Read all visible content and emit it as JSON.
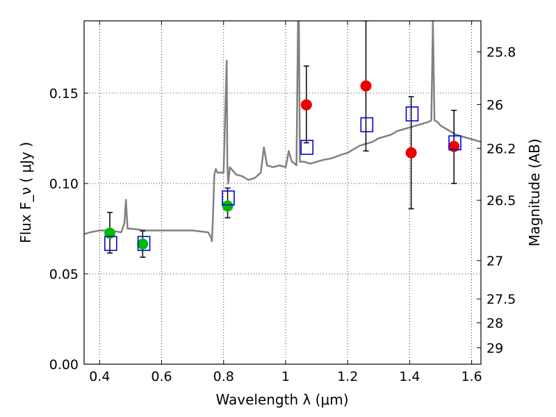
{
  "chart_data": {
    "type": "scatter",
    "xlabel": "Wavelength  λ (μm)",
    "ylabel": "Flux  F_ν  ( μJy )",
    "y2label": "Magnitude (AB)",
    "xlim": [
      0.35,
      1.63
    ],
    "ylim": [
      0.0,
      0.19
    ],
    "grid": true,
    "x_ticks": [
      "0.4",
      "0.6",
      "0.8",
      "1",
      "1.2",
      "1.4",
      "1.6"
    ],
    "y_ticks": [
      "0.00",
      "0.05",
      "0.10",
      "0.15"
    ],
    "y2_ticks": [
      {
        "label": "25.8",
        "flux": 0.1728
      },
      {
        "label": "26",
        "flux": 0.1437
      },
      {
        "label": "26.2",
        "flux": 0.1195
      },
      {
        "label": "26.5",
        "flux": 0.0907
      },
      {
        "label": "27",
        "flux": 0.0573
      },
      {
        "label": "27.5",
        "flux": 0.0361
      },
      {
        "label": "28",
        "flux": 0.0229
      },
      {
        "label": "29",
        "flux": 0.0091
      }
    ],
    "series": [
      {
        "type": "line",
        "color": "#808080",
        "x": [
          0.35,
          0.37,
          0.4,
          0.43,
          0.47,
          0.48,
          0.485,
          0.49,
          0.5,
          0.55,
          0.6,
          0.65,
          0.7,
          0.75,
          0.76,
          0.762,
          0.765,
          0.77,
          0.775,
          0.78,
          0.8,
          0.81,
          0.812,
          0.815,
          0.82,
          0.84,
          0.86,
          0.88,
          0.9,
          0.92,
          0.93,
          0.94,
          0.96,
          0.98,
          1.0,
          1.005,
          1.01,
          1.02,
          1.03,
          1.035,
          1.04,
          1.043,
          1.046,
          1.05,
          1.06,
          1.08,
          1.1,
          1.12,
          1.15,
          1.18,
          1.2,
          1.22,
          1.24,
          1.26,
          1.28,
          1.3,
          1.32,
          1.34,
          1.36,
          1.38,
          1.4,
          1.42,
          1.44,
          1.46,
          1.47,
          1.475,
          1.48,
          1.49,
          1.5,
          1.52,
          1.55,
          1.57,
          1.59,
          1.61,
          1.63
        ],
        "y": [
          0.072,
          0.073,
          0.074,
          0.074,
          0.073,
          0.078,
          0.091,
          0.075,
          0.075,
          0.074,
          0.074,
          0.074,
          0.074,
          0.073,
          0.07,
          0.068,
          0.078,
          0.105,
          0.108,
          0.106,
          0.106,
          0.168,
          0.11,
          0.1,
          0.109,
          0.105,
          0.104,
          0.102,
          0.103,
          0.106,
          0.12,
          0.11,
          0.109,
          0.11,
          0.109,
          0.113,
          0.118,
          0.112,
          0.111,
          0.11,
          0.19,
          0.19,
          0.112,
          0.112,
          0.112,
          0.111,
          0.112,
          0.113,
          0.114,
          0.116,
          0.117,
          0.119,
          0.121,
          0.122,
          0.123,
          0.125,
          0.126,
          0.127,
          0.129,
          0.13,
          0.131,
          0.132,
          0.133,
          0.134,
          0.135,
          0.19,
          0.135,
          0.134,
          0.132,
          0.13,
          0.127,
          0.126,
          0.125,
          0.124,
          0.123
        ]
      },
      {
        "type": "scatter",
        "marker": "circle",
        "color": "#00bb00",
        "x": [
          0.433,
          0.539,
          0.813
        ],
        "y": [
          0.0725,
          0.0665,
          0.0875
        ],
        "err_low": [
          0.0615,
          0.0592,
          0.081
        ],
        "err_high": [
          0.084,
          0.0737,
          0.0975
        ]
      },
      {
        "type": "scatter",
        "marker": "circle",
        "color": "#ee0000",
        "x": [
          1.067,
          1.259,
          1.405,
          1.543
        ],
        "y": [
          0.1435,
          0.154,
          0.117,
          0.1205
        ],
        "err_low": [
          0.1225,
          0.118,
          0.086,
          0.1
        ],
        "err_high": [
          0.165,
          0.19,
          0.148,
          0.1405
        ]
      },
      {
        "type": "scatter",
        "marker": "square",
        "color": "#0000dd",
        "x": [
          0.436,
          0.543,
          0.815,
          1.069,
          1.262,
          1.408,
          1.546
        ],
        "y": [
          0.0668,
          0.0668,
          0.092,
          0.12,
          0.1325,
          0.1385,
          0.1225
        ]
      }
    ]
  }
}
